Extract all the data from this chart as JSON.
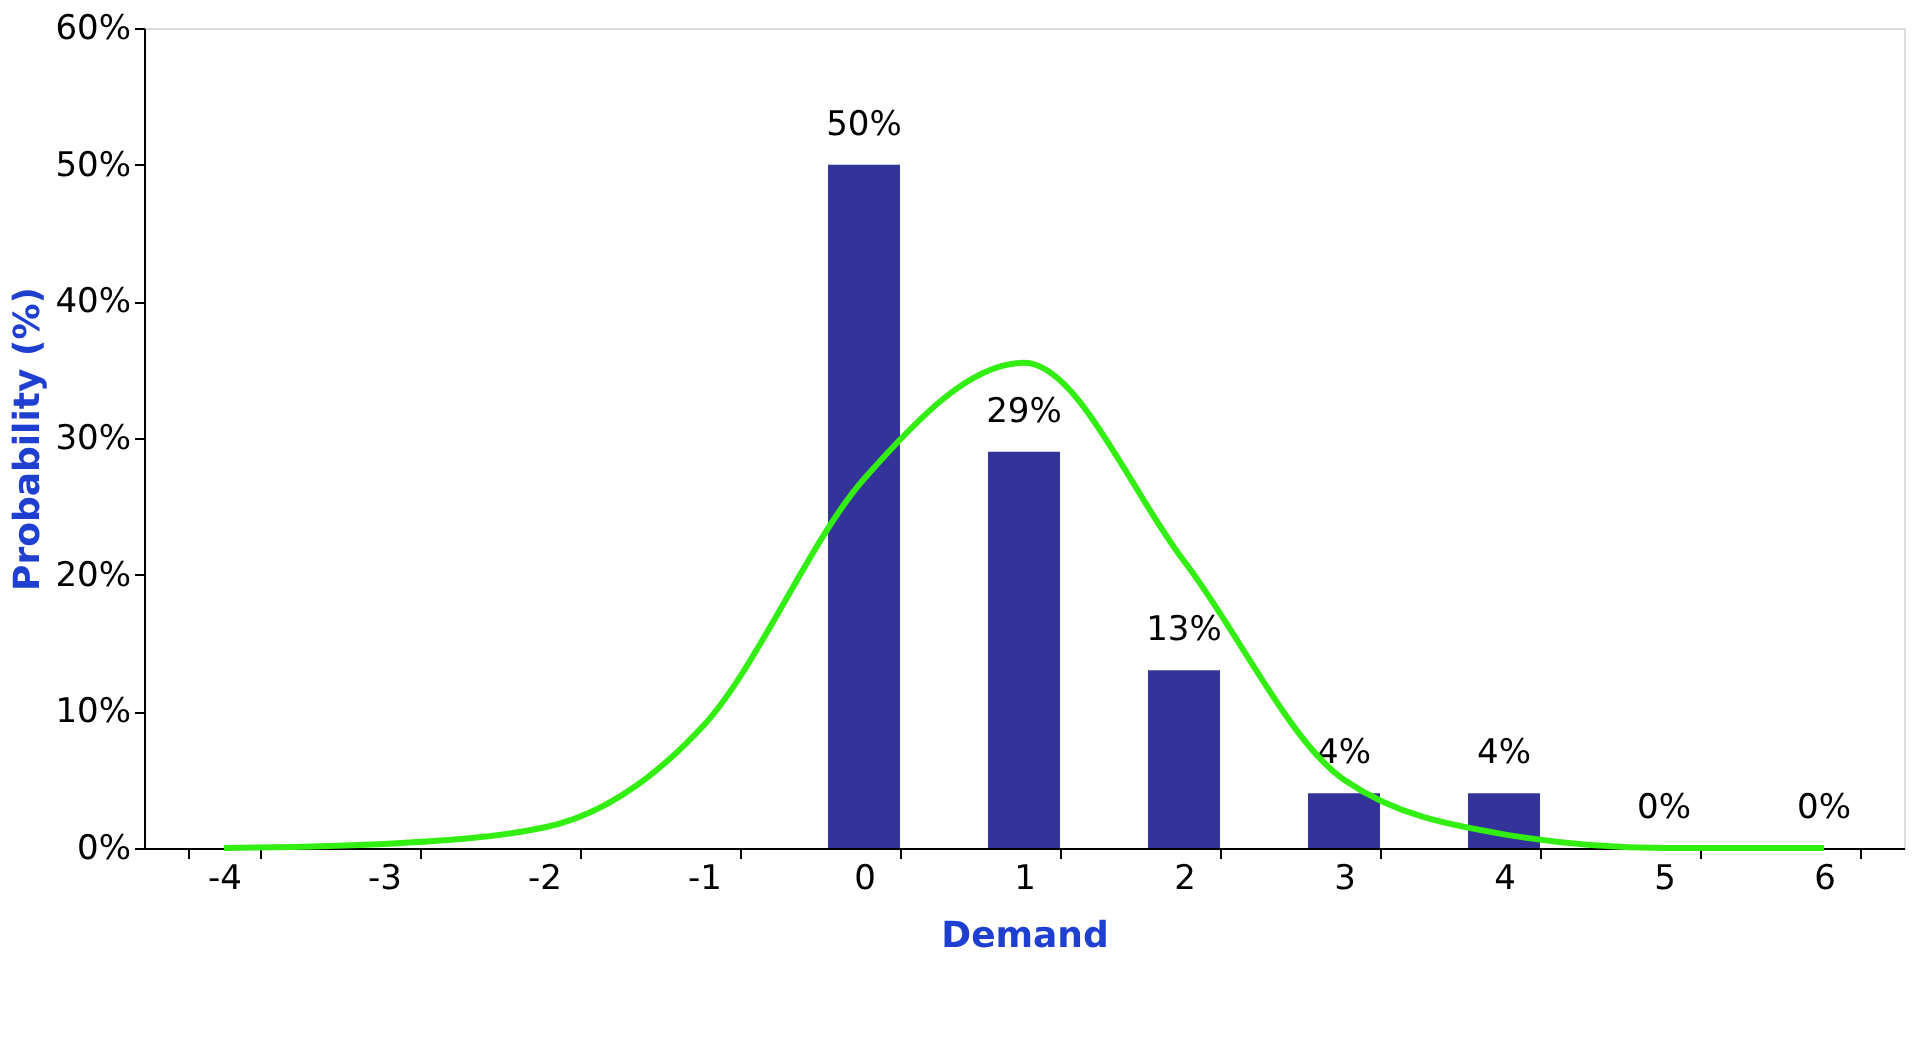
{
  "chart_data": {
    "type": "bar",
    "xlabel": "Demand",
    "ylabel": "Probability  (%)",
    "categories": [
      "-4",
      "-3",
      "-2",
      "-1",
      "0",
      "1",
      "2",
      "3",
      "4",
      "5",
      "6"
    ],
    "series": [
      {
        "color": "#333399",
        "values": [
          null,
          null,
          null,
          null,
          50,
          29,
          13,
          4,
          4,
          0,
          0
        ],
        "value_labels": [
          null,
          null,
          null,
          null,
          "50%",
          "29%",
          "13%",
          "4%",
          "4%",
          "0%",
          "0%"
        ]
      },
      {
        "type": "line",
        "color": "#33ee11",
        "values": [
          0,
          0.3,
          1.5,
          9,
          27,
          35.5,
          21,
          5,
          1,
          0,
          0
        ]
      }
    ],
    "ylim": [
      0,
      60
    ],
    "yticks": [
      {
        "value": 0,
        "label": "0%"
      },
      {
        "value": 10,
        "label": "10%"
      },
      {
        "value": 20,
        "label": "20%"
      },
      {
        "value": 30,
        "label": "30%"
      },
      {
        "value": 40,
        "label": "40%"
      },
      {
        "value": 50,
        "label": "50%"
      },
      {
        "value": 60,
        "label": "60%"
      }
    ],
    "grid": false,
    "legend": false,
    "marker": "none",
    "line_style": "solid"
  }
}
